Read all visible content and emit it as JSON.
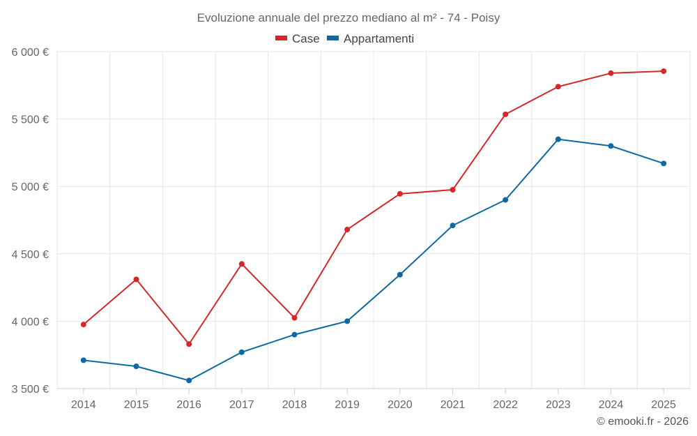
{
  "chart_data": {
    "type": "line",
    "title": "Evoluzione annuale del prezzo mediano al m² - 74 - Poisy",
    "categories": [
      "2014",
      "2015",
      "2016",
      "2017",
      "2018",
      "2019",
      "2020",
      "2021",
      "2022",
      "2023",
      "2024",
      "2025"
    ],
    "series": [
      {
        "name": "Case",
        "color": "#d62728",
        "values": [
          3975,
          4310,
          3830,
          4425,
          4025,
          4680,
          4945,
          4975,
          5535,
          5740,
          5840,
          5855
        ]
      },
      {
        "name": "Appartamenti",
        "color": "#0b6aa2",
        "values": [
          3710,
          3665,
          3560,
          3770,
          3900,
          4000,
          4345,
          4710,
          4900,
          5350,
          5300,
          5170
        ]
      }
    ],
    "yticks": [
      3500,
      4000,
      4500,
      5000,
      5500,
      6000
    ],
    "ytick_labels": [
      "3 500 €",
      "4 000 €",
      "4 500 €",
      "5 000 €",
      "5 500 €",
      "6 000 €"
    ],
    "ylim": [
      3500,
      6000
    ],
    "xlabel": "",
    "ylabel": "",
    "legend_position": "top-center",
    "grid": true
  },
  "credit": "© emooki.fr - 2026"
}
